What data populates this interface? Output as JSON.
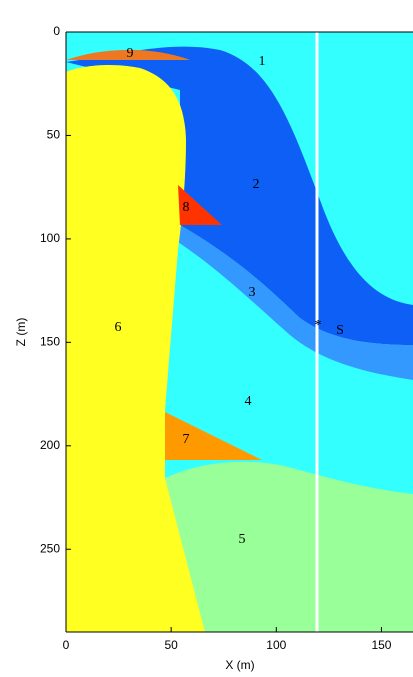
{
  "chart_data": {
    "type": "region-model",
    "xlabel": "X (m)",
    "ylabel": "Z (m)",
    "xlim": [
      0,
      165
    ],
    "ylim": [
      0,
      290
    ],
    "xticks": [
      0,
      50,
      100,
      150
    ],
    "yticks": [
      0,
      50,
      100,
      150,
      200,
      250
    ],
    "annotations": [
      "1",
      "2",
      "3",
      "4",
      "5",
      "6",
      "7",
      "8",
      "9",
      "S"
    ]
  }
}
